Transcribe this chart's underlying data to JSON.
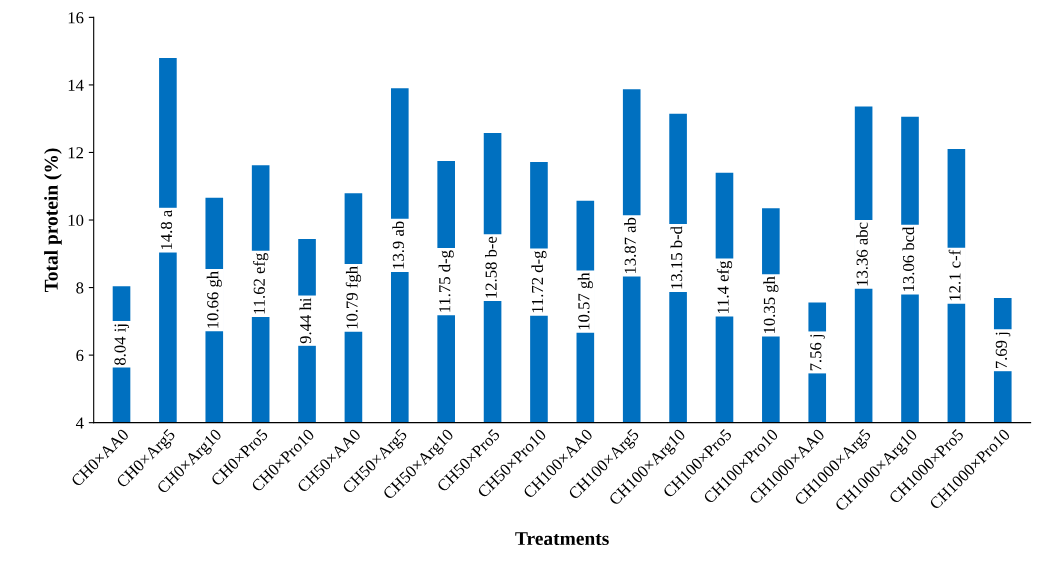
{
  "chart_data": {
    "type": "bar",
    "xlabel": "Treatments",
    "ylabel": "Total protein (%)",
    "categories": [
      "CH0×AA0",
      "CH0×Arg5",
      "CH0×Arg10",
      "CH0×Pro5",
      "CH0×Pro10",
      "CH50×AA0",
      "CH50×Arg5",
      "CH50×Arg10",
      "CH50×Pro5",
      "CH50×Pro10",
      "CH100×AA0",
      "CH100×Arg5",
      "CH100×Arg10",
      "CH100×Pro5",
      "CH100×Pro10",
      "CH1000×AA0",
      "CH1000×Arg5",
      "CH1000×Arg10",
      "CH1000×Pro5",
      "CH1000×Pro10"
    ],
    "values": [
      8.04,
      14.8,
      10.66,
      11.62,
      9.44,
      10.79,
      13.9,
      11.75,
      12.58,
      11.72,
      10.57,
      13.87,
      13.15,
      11.4,
      10.35,
      7.56,
      13.36,
      13.06,
      12.1,
      7.69
    ],
    "value_labels": [
      "8.04 ij",
      "14.8 a",
      "10.66 gh",
      "11.62 efg",
      "9.44 hi",
      "10.79 fgh",
      "13.9 ab",
      "11.75 d-g",
      "12.58 b-e",
      "11.72 d-g",
      "10.57 gh",
      "13.87 ab",
      "13.15 b-d",
      "11.4 efg",
      "10.35 gh",
      "7.56 j",
      "13.36 abc",
      "13.06 bcd",
      "12.1 c-f",
      "7.69 j"
    ],
    "color": "#0070c0",
    "ylim": [
      4,
      16
    ],
    "yticks": [
      4,
      6,
      8,
      10,
      12,
      14,
      16
    ],
    "grid": false,
    "legend": false
  }
}
